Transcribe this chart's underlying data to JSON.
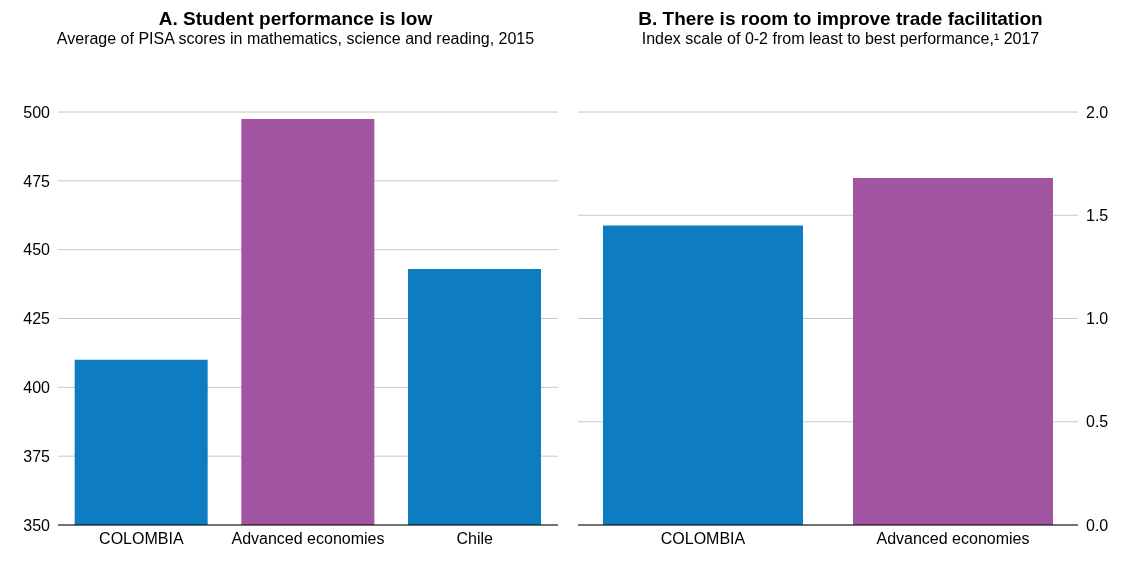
{
  "chart_data": [
    {
      "type": "bar",
      "title": "A. Student performance is low",
      "subtitle": "Average of PISA scores in mathematics, science and reading, 2015",
      "categories": [
        "COLOMBIA",
        "Advanced economies",
        "Chile"
      ],
      "values": [
        410,
        497.5,
        443
      ],
      "colors": [
        "#0d7cc1",
        "#a154a1",
        "#0d7cc1"
      ],
      "ylim": [
        350,
        500
      ],
      "yticks": [
        350,
        375,
        400,
        425,
        450,
        475,
        500
      ],
      "grid": "y",
      "legend": false
    },
    {
      "type": "bar",
      "title": "B. There is room to improve trade facilitation",
      "subtitle": "Index scale of 0-2 from least to best performance,¹ 2017",
      "categories": [
        "COLOMBIA",
        "Advanced economies"
      ],
      "series": [
        {
          "values": [
            1.45,
            1.68
          ],
          "axis": "y2"
        }
      ],
      "colors": [
        "#0d7cc1",
        "#a154a1"
      ],
      "y2lim": [
        0,
        2
      ],
      "y2ticks": [
        {
          "value": 0,
          "label": "0.0"
        },
        {
          "value": 0.5,
          "label": "0.5"
        },
        {
          "value": 1,
          "label": "1.0"
        },
        {
          "value": 1.5,
          "label": "1.5"
        },
        {
          "value": 2,
          "label": "2.0"
        }
      ],
      "grid": "y",
      "legend": false
    }
  ]
}
